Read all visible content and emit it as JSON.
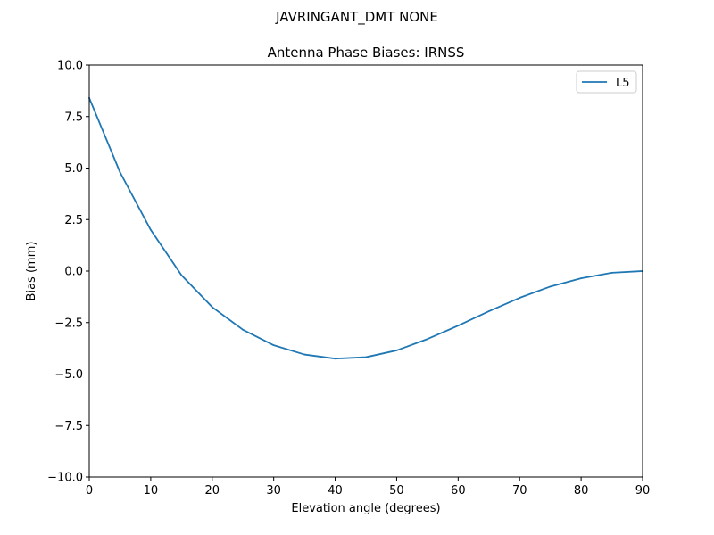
{
  "figure": {
    "suptitle": "JAVRINGANT_DMT  NONE"
  },
  "chart_data": {
    "type": "line",
    "title": "Antenna Phase Biases: IRNSS",
    "xlabel": "Elevation angle (degrees)",
    "ylabel": "Bias (mm)",
    "xlim": [
      0,
      90
    ],
    "ylim": [
      -10,
      10
    ],
    "xticks": [
      0,
      10,
      20,
      30,
      40,
      50,
      60,
      70,
      80,
      90
    ],
    "xtick_labels": [
      "0",
      "10",
      "20",
      "30",
      "40",
      "50",
      "60",
      "70",
      "80",
      "90"
    ],
    "yticks": [
      -10,
      -7.5,
      -5,
      -2.5,
      0,
      2.5,
      5,
      7.5,
      10
    ],
    "ytick_labels": [
      "−10.0",
      "−7.5",
      "−5.0",
      "−2.5",
      "0.0",
      "2.5",
      "5.0",
      "7.5",
      "10.0"
    ],
    "grid": false,
    "legend_position": "top-right",
    "x": [
      0,
      5,
      10,
      15,
      20,
      25,
      30,
      35,
      40,
      45,
      50,
      55,
      60,
      65,
      70,
      75,
      80,
      85,
      90
    ],
    "series": [
      {
        "name": "L5",
        "color": "#1f77b4",
        "values": [
          8.4,
          4.8,
          2.0,
          -0.2,
          -1.75,
          -2.85,
          -3.6,
          -4.05,
          -4.25,
          -4.18,
          -3.85,
          -3.3,
          -2.65,
          -1.95,
          -1.3,
          -0.75,
          -0.35,
          -0.08,
          0.0
        ]
      }
    ]
  }
}
